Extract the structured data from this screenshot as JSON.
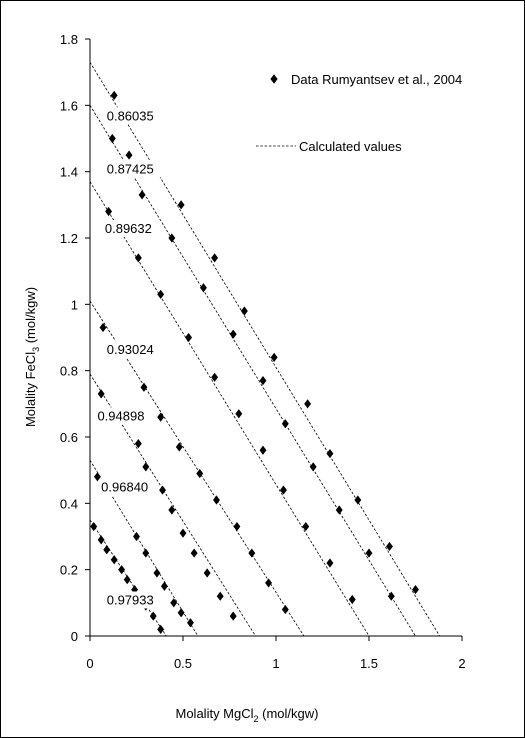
{
  "chart_data": {
    "type": "scatter",
    "xlabel": {
      "main": "Molality MgCl",
      "sub": "2",
      "tail": " (mol/kgw)"
    },
    "ylabel": {
      "main": "Molality FeCl",
      "sub": "3",
      "tail": " (mol/kgw)"
    },
    "xlim": [
      0,
      2
    ],
    "ylim": [
      0,
      1.8
    ],
    "x_ticks": [
      "0",
      "0.5",
      "1",
      "1.5",
      "2"
    ],
    "y_ticks": [
      "0",
      "0.2",
      "0.4",
      "0.6",
      "0.8",
      "1",
      "1.2",
      "1.4",
      "1.6",
      "1.8"
    ],
    "grid": false,
    "legend": {
      "position": "top-right",
      "entries": [
        {
          "label": "Data Rumyantsev et al., 2004",
          "marker": "diamond"
        },
        {
          "label": "Calculated values",
          "line": "dashed"
        }
      ]
    },
    "series": [
      {
        "label": "0.86035",
        "line": [
          [
            0,
            1.73
          ],
          [
            1.88,
            0
          ]
        ],
        "points": [
          [
            0.13,
            1.63
          ],
          [
            0.21,
            1.45
          ],
          [
            0.49,
            1.3
          ],
          [
            0.67,
            1.14
          ],
          [
            0.83,
            0.98
          ],
          [
            0.99,
            0.84
          ],
          [
            1.17,
            0.7
          ],
          [
            1.29,
            0.55
          ],
          [
            1.44,
            0.41
          ],
          [
            1.61,
            0.27
          ],
          [
            1.75,
            0.14
          ]
        ]
      },
      {
        "label": "0.87425",
        "line": [
          [
            0,
            1.6
          ],
          [
            1.75,
            0
          ]
        ],
        "points": [
          [
            0.12,
            1.5
          ],
          [
            0.28,
            1.33
          ],
          [
            0.44,
            1.2
          ],
          [
            0.61,
            1.05
          ],
          [
            0.77,
            0.91
          ],
          [
            0.93,
            0.77
          ],
          [
            1.05,
            0.64
          ],
          [
            1.2,
            0.51
          ],
          [
            1.34,
            0.38
          ],
          [
            1.5,
            0.25
          ],
          [
            1.62,
            0.12
          ]
        ]
      },
      {
        "label": "0.89632",
        "line": [
          [
            0,
            1.37
          ],
          [
            1.5,
            0
          ]
        ],
        "points": [
          [
            0.1,
            1.28
          ],
          [
            0.26,
            1.14
          ],
          [
            0.38,
            1.03
          ],
          [
            0.53,
            0.9
          ],
          [
            0.67,
            0.78
          ],
          [
            0.8,
            0.67
          ],
          [
            0.93,
            0.56
          ],
          [
            1.04,
            0.44
          ],
          [
            1.16,
            0.33
          ],
          [
            1.29,
            0.22
          ],
          [
            1.41,
            0.11
          ]
        ]
      },
      {
        "label": "0.93024",
        "line": [
          [
            0,
            1.01
          ],
          [
            1.15,
            0
          ]
        ],
        "points": [
          [
            0.07,
            0.93
          ],
          [
            0.29,
            0.75
          ],
          [
            0.38,
            0.66
          ],
          [
            0.48,
            0.57
          ],
          [
            0.59,
            0.49
          ],
          [
            0.68,
            0.41
          ],
          [
            0.79,
            0.33
          ],
          [
            0.87,
            0.25
          ],
          [
            0.96,
            0.16
          ],
          [
            1.05,
            0.08
          ]
        ]
      },
      {
        "label": "0.94898",
        "line": [
          [
            0,
            0.79
          ],
          [
            0.89,
            0
          ]
        ],
        "points": [
          [
            0.06,
            0.73
          ],
          [
            0.26,
            0.58
          ],
          [
            0.3,
            0.51
          ],
          [
            0.39,
            0.44
          ],
          [
            0.44,
            0.38
          ],
          [
            0.5,
            0.31
          ],
          [
            0.56,
            0.25
          ],
          [
            0.63,
            0.19
          ],
          [
            0.7,
            0.12
          ],
          [
            0.77,
            0.06
          ]
        ]
      },
      {
        "label": "0.96840",
        "line": [
          [
            0,
            0.53
          ],
          [
            0.58,
            0
          ]
        ],
        "points": [
          [
            0.04,
            0.48
          ],
          [
            0.25,
            0.3
          ],
          [
            0.3,
            0.25
          ],
          [
            0.36,
            0.19
          ],
          [
            0.4,
            0.15
          ],
          [
            0.45,
            0.1
          ],
          [
            0.49,
            0.07
          ],
          [
            0.54,
            0.04
          ]
        ]
      },
      {
        "label": "0.97933",
        "line": [
          [
            0,
            0.35
          ],
          [
            0.41,
            0
          ]
        ],
        "points": [
          [
            0.02,
            0.33
          ],
          [
            0.06,
            0.29
          ],
          [
            0.09,
            0.26
          ],
          [
            0.13,
            0.23
          ],
          [
            0.17,
            0.2
          ],
          [
            0.2,
            0.17
          ],
          [
            0.24,
            0.14
          ],
          [
            0.3,
            0.09
          ],
          [
            0.34,
            0.06
          ],
          [
            0.38,
            0.02
          ]
        ]
      }
    ]
  }
}
